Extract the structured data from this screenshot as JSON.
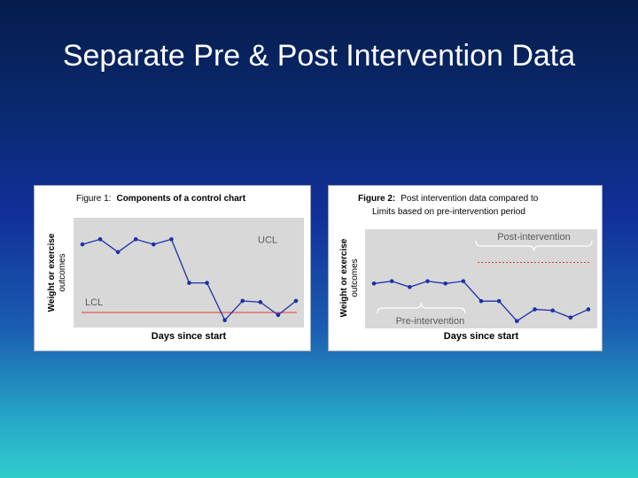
{
  "slide": {
    "title": "Separate Pre & Post Intervention Data"
  },
  "chart_data": [
    {
      "type": "line",
      "title": "Figure 1:  Components of a control chart",
      "title_prefix": "Figure 1:",
      "title_rest": "Components of a control chart",
      "xlabel": "Days since start",
      "ylabel_line1": "Weight or exercise",
      "ylabel_line2": "outcomes",
      "x": [
        1,
        2,
        3,
        4,
        5,
        6,
        7,
        8,
        9,
        10,
        11,
        12,
        13
      ],
      "values": [
        6.2,
        6.6,
        5.6,
        6.6,
        6.2,
        6.6,
        3.2,
        3.2,
        0.3,
        1.8,
        1.7,
        0.7,
        1.8
      ],
      "ylim": [
        0,
        8
      ],
      "limits": [
        {
          "label": "UCL",
          "value": 6.3,
          "line": false
        },
        {
          "label": "LCL",
          "value": 0.9,
          "line": true,
          "color": "#e03a2a"
        }
      ],
      "colors": {
        "series": "#1c2fa8",
        "plot_bg": "#d8d8d8"
      }
    },
    {
      "type": "line",
      "title_line1": "Figure 2:  Post intervention data compared to",
      "title_line2": "Limits based on pre-intervention period",
      "title_prefix": "Figure 2:",
      "title_rest": "Post intervention data compared to",
      "xlabel": "Days since start",
      "ylabel_line1": "Weight or exercise",
      "ylabel_line2": "outcomes",
      "x": [
        1,
        2,
        3,
        4,
        5,
        6,
        7,
        8,
        9,
        10,
        11,
        12,
        13
      ],
      "values": [
        3.6,
        3.8,
        3.3,
        3.8,
        3.6,
        3.8,
        2.1,
        2.1,
        0.4,
        1.4,
        1.3,
        0.7,
        1.4
      ],
      "ylim": [
        0,
        8
      ],
      "annotations": [
        {
          "label": "Post-intervention",
          "range": [
            7,
            13
          ],
          "position": "top"
        },
        {
          "label": "Pre-intervention",
          "range": [
            1,
            6
          ],
          "position": "bottom"
        }
      ],
      "limits": [
        {
          "label": "",
          "value": 5.4,
          "line": true,
          "style": "dotted",
          "color": "#e03a2a",
          "range": [
            7,
            13
          ]
        }
      ],
      "colors": {
        "series": "#1c2fa8",
        "plot_bg": "#d8d8d8"
      }
    }
  ]
}
